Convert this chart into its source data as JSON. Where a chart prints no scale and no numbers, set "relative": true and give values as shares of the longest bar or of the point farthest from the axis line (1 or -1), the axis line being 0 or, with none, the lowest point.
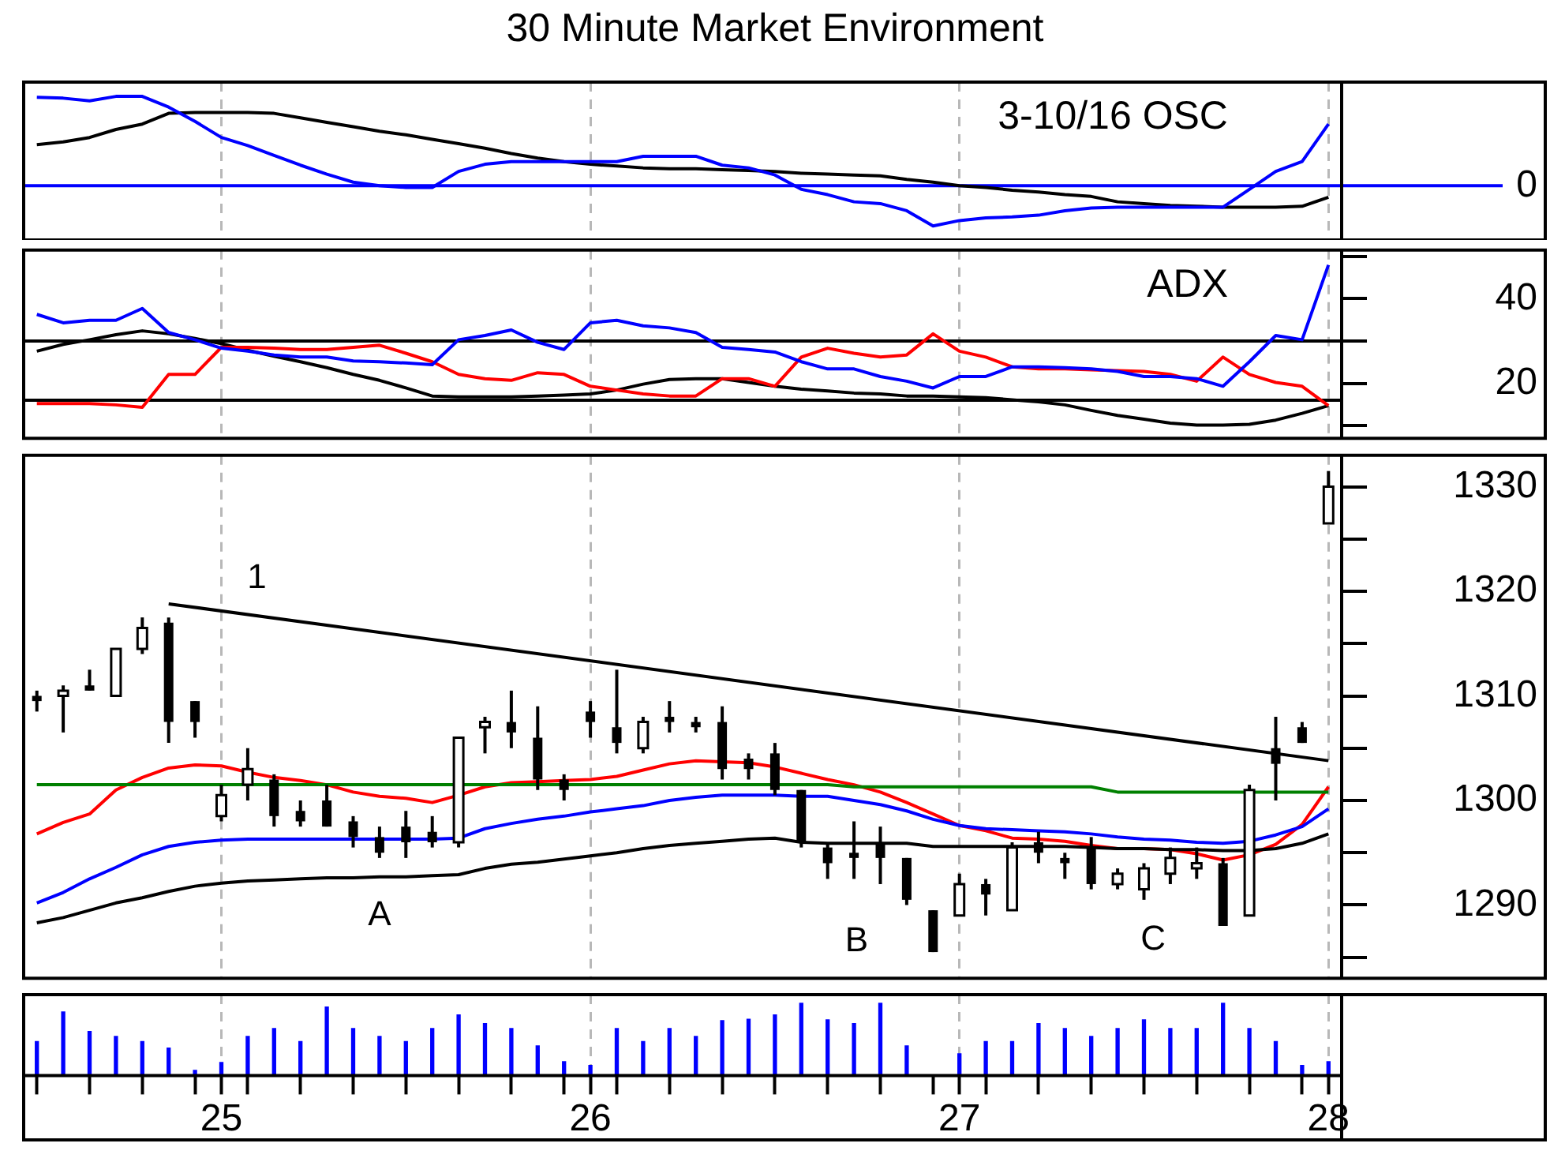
{
  "chart_data": [
    {
      "type": "line",
      "title": "30 Minute Market Environment",
      "relative": true,
      "annotations": [
        "3-10/16 OSC"
      ],
      "tick_labels": false,
      "grid": "x",
      "categories": [
        null,
        null,
        null,
        null,
        null,
        null,
        null,
        "25",
        null,
        null,
        null,
        null,
        null,
        null,
        null,
        null,
        null,
        null,
        null,
        null,
        null,
        "26",
        null,
        null,
        null,
        null,
        null,
        null,
        null,
        null,
        null,
        null,
        null,
        null,
        null,
        "27",
        null,
        null,
        null,
        null,
        null,
        null,
        null,
        null,
        null,
        null,
        null,
        null,
        null,
        "28"
      ],
      "ref_lines": [
        {
          "axis": "y",
          "value": 0,
          "label": "0",
          "color": "#0000ff"
        }
      ],
      "series": [
        {
          "color": "#0000ff",
          "values": [
            0.99,
            0.98,
            0.95,
            1,
            1,
            0.88,
            0.72,
            0.54,
            0.45,
            0.34,
            0.23,
            0.13,
            0.04,
            0,
            -0.02,
            -0.02,
            0.16,
            0.24,
            0.27,
            0.27,
            0.27,
            0.27,
            0.27,
            0.33,
            0.33,
            0.33,
            0.23,
            0.2,
            0.12,
            -0.04,
            -0.1,
            -0.18,
            -0.2,
            -0.28,
            -0.45,
            -0.39,
            -0.36,
            -0.35,
            -0.33,
            -0.28,
            -0.25,
            -0.24,
            -0.24,
            -0.24,
            -0.24,
            -0.24,
            -0.04,
            0.16,
            0.27,
            0.69
          ]
        },
        {
          "color": "#000000",
          "values": [
            0.46,
            0.49,
            0.54,
            0.63,
            0.69,
            0.81,
            0.82,
            0.82,
            0.82,
            0.81,
            0.76,
            0.71,
            0.66,
            0.61,
            0.57,
            0.52,
            0.47,
            0.42,
            0.36,
            0.31,
            0.27,
            0.24,
            0.22,
            0.2,
            0.19,
            0.19,
            0.18,
            0.17,
            0.16,
            0.14,
            0.13,
            0.12,
            0.11,
            0.07,
            0.04,
            0,
            -0.02,
            -0.05,
            -0.07,
            -0.1,
            -0.12,
            -0.18,
            -0.2,
            -0.22,
            -0.23,
            -0.24,
            -0.24,
            -0.24,
            -0.23,
            -0.13
          ]
        }
      ]
    },
    {
      "type": "line",
      "annotations": [
        "ADX"
      ],
      "tick_labels": "y",
      "grid": "x",
      "categories": [
        null,
        null,
        null,
        null,
        null,
        null,
        null,
        "25",
        null,
        null,
        null,
        null,
        null,
        null,
        null,
        null,
        null,
        null,
        null,
        null,
        null,
        "26",
        null,
        null,
        null,
        null,
        null,
        null,
        null,
        null,
        null,
        null,
        null,
        null,
        null,
        "27",
        null,
        null,
        null,
        null,
        null,
        null,
        null,
        null,
        null,
        null,
        null,
        null,
        null,
        "28"
      ],
      "ylim": [
        7,
        51.5
      ],
      "yticks": [
        {
          "value": 10,
          "label": null
        },
        20,
        {
          "value": 30,
          "label": null
        },
        40,
        {
          "value": 50,
          "label": null
        }
      ],
      "ref_lines": [
        {
          "axis": "y",
          "value": 30,
          "color": "#000000"
        },
        {
          "axis": "y",
          "value": 16,
          "color": "#000000"
        }
      ],
      "series": [
        {
          "color": "#0000ff",
          "values": [
            36.3,
            34.3,
            34.9,
            34.9,
            37.7,
            32,
            30.3,
            28.3,
            27.6,
            26.7,
            26.2,
            26.2,
            25.3,
            25.1,
            24.8,
            24.4,
            30.3,
            31.3,
            32.6,
            29.7,
            28,
            34.3,
            34.9,
            33.6,
            33.1,
            32,
            28.5,
            28,
            27.4,
            25.1,
            23.4,
            23.4,
            21.6,
            20.5,
            18.9,
            21.6,
            21.6,
            23.9,
            23.9,
            23.7,
            23.4,
            22.8,
            21.6,
            21.6,
            21.1,
            19.3,
            25.1,
            31.3,
            30.3,
            48
          ]
        },
        {
          "color": "#ff0000",
          "values": [
            15.2,
            15.2,
            15.2,
            14.9,
            14.3,
            22.1,
            22.1,
            28.5,
            28.5,
            28.3,
            28,
            28,
            28.5,
            29,
            27.1,
            25.1,
            22.1,
            21.1,
            20.7,
            22.5,
            22.1,
            19.3,
            18.4,
            17.5,
            17,
            17,
            21.1,
            21.1,
            19.3,
            26.2,
            28.3,
            27.1,
            26.2,
            26.7,
            31.7,
            27.6,
            26.2,
            23.9,
            23.4,
            23.4,
            23.2,
            23,
            22.8,
            22.1,
            20.5,
            26.2,
            22.1,
            20.2,
            19.3,
            14.7
          ]
        },
        {
          "color": "#000000",
          "values": [
            27.6,
            29.2,
            30.3,
            31.5,
            32.4,
            31.7,
            30.6,
            29.4,
            27.8,
            26.4,
            25.1,
            23.7,
            22.1,
            20.7,
            18.9,
            17,
            16.8,
            16.8,
            16.8,
            17,
            17.2,
            17.5,
            18.4,
            19.8,
            20.9,
            21.1,
            21.1,
            20.2,
            19.3,
            18.6,
            18.2,
            17.7,
            17.5,
            17,
            17,
            16.8,
            16.6,
            16.1,
            15.6,
            14.9,
            13.6,
            12.4,
            11.5,
            10.6,
            10.1,
            10.1,
            10.3,
            11.3,
            12.9,
            14.7
          ]
        }
      ]
    },
    {
      "type": "candlestick",
      "tick_labels": "y",
      "grid": "x",
      "categories": [
        null,
        null,
        null,
        null,
        null,
        null,
        null,
        "25",
        null,
        null,
        null,
        null,
        null,
        null,
        null,
        null,
        null,
        null,
        null,
        null,
        null,
        "26",
        null,
        null,
        null,
        null,
        null,
        null,
        null,
        null,
        null,
        null,
        null,
        null,
        null,
        "27",
        null,
        null,
        null,
        null,
        null,
        null,
        null,
        null,
        null,
        null,
        null,
        null,
        null,
        "28"
      ],
      "ylim": [
        1283,
        1333
      ],
      "yticks": [
        {
          "value": 1285,
          "label": null
        },
        1290,
        {
          "value": 1295,
          "label": null
        },
        1300,
        {
          "value": 1305,
          "label": null
        },
        1310,
        {
          "value": 1315,
          "label": null
        },
        1320,
        {
          "value": 1325,
          "label": null
        },
        1330
      ],
      "annotations": [
        "1",
        "A",
        "B",
        "C"
      ],
      "ohlc": [
        [
          1310,
          1310.5,
          1308.5,
          1309.5
        ],
        [
          1310,
          1311,
          1306.5,
          1310.5
        ],
        [
          1311,
          1312.5,
          1310.5,
          1310.5
        ],
        [
          1310,
          1314.5,
          1310,
          1314.5
        ],
        [
          1314.5,
          1317.5,
          1314,
          1316.5
        ],
        [
          1317,
          1317.5,
          1305.5,
          1307.5
        ],
        [
          1309.5,
          1309.5,
          1306,
          1307.5
        ],
        [
          1298.5,
          1301.5,
          1298,
          1300.5
        ],
        [
          1301.5,
          1305,
          1300,
          1303
        ],
        [
          1302,
          1302.5,
          1297.5,
          1298.5
        ],
        [
          1299,
          1300,
          1297.5,
          1298
        ],
        [
          1300,
          1301.5,
          1297.5,
          1297.5
        ],
        [
          1298,
          1298.5,
          1295.5,
          1296.5
        ],
        [
          1296.5,
          1297.5,
          1294.5,
          1295
        ],
        [
          1297.5,
          1299,
          1294.5,
          1296
        ],
        [
          1297,
          1298.5,
          1295.5,
          1296
        ],
        [
          1296,
          1306,
          1295.5,
          1306
        ],
        [
          1307,
          1308,
          1304.5,
          1307.5
        ],
        [
          1307.5,
          1310.5,
          1305,
          1306.5
        ],
        [
          1306,
          1309,
          1301,
          1302
        ],
        [
          1302,
          1302.5,
          1300,
          1301
        ],
        [
          1308.5,
          1309.5,
          1306,
          1307.5
        ],
        [
          1307,
          1312.5,
          1304.5,
          1305.5
        ],
        [
          1305,
          1308,
          1304.5,
          1307.5
        ],
        [
          1308,
          1309.5,
          1306.5,
          1307.5
        ],
        [
          1307.5,
          1308,
          1306.5,
          1307
        ],
        [
          1307.5,
          1309,
          1302,
          1303
        ],
        [
          1304,
          1304.5,
          1302,
          1303
        ],
        [
          1304.5,
          1305.5,
          1300.5,
          1301
        ],
        [
          1301,
          1301,
          1295.5,
          1296
        ],
        [
          1295.5,
          1296,
          1292.5,
          1294
        ],
        [
          1295,
          1298,
          1292.5,
          1294.5
        ],
        [
          1296,
          1297.5,
          1292,
          1294.5
        ],
        [
          1294.5,
          1294.5,
          1290,
          1290.5
        ],
        [
          1289.5,
          1289.5,
          1285.5,
          1285.5
        ],
        [
          1289,
          1293,
          1289,
          1292
        ],
        [
          1292,
          1292.5,
          1289,
          1291
        ],
        [
          1289.5,
          1296,
          1289.5,
          1295.5
        ],
        [
          1296,
          1297,
          1294,
          1295
        ],
        [
          1294.5,
          1295,
          1292.5,
          1294
        ],
        [
          1295.5,
          1296.5,
          1291.5,
          1292
        ],
        [
          1292,
          1293.5,
          1291.5,
          1293
        ],
        [
          1291.5,
          1294,
          1290.5,
          1293.5
        ],
        [
          1293,
          1295.5,
          1292,
          1294.5
        ],
        [
          1293.5,
          1295.5,
          1292.5,
          1294
        ],
        [
          1294,
          1294.5,
          1288,
          1288
        ],
        [
          1289,
          1301.5,
          1289,
          1301
        ],
        [
          1305,
          1308,
          1300,
          1303.5
        ],
        [
          1307,
          1307.5,
          1305.5,
          1305.5
        ],
        [
          1326.5,
          1331.5,
          1326.5,
          1330
        ]
      ],
      "series": [
        {
          "type": "line",
          "color": "#008000",
          "values": [
            1301.5,
            1301.5,
            1301.5,
            1301.5,
            1301.5,
            1301.5,
            1301.5,
            1301.5,
            1301.5,
            1301.5,
            1301.5,
            1301.5,
            1301.5,
            1301.5,
            1301.5,
            1301.5,
            1301.5,
            1301.5,
            1301.5,
            1301.5,
            1301.5,
            1301.5,
            1301.5,
            1301.5,
            1301.5,
            1301.5,
            1301.5,
            1301.5,
            1301.5,
            1301.5,
            1301.5,
            1301.3,
            1301.3,
            1301.3,
            1301.3,
            1301.3,
            1301.3,
            1301.3,
            1301.3,
            1301.3,
            1301.3,
            1300.8,
            1300.8,
            1300.8,
            1300.8,
            1300.8,
            1300.8,
            1300.8,
            1300.8,
            1300.8
          ]
        },
        {
          "type": "line",
          "color": "#000000",
          "values": [
            1288.3,
            1288.8,
            1289.5,
            1290.2,
            1290.7,
            1291.3,
            1291.8,
            1292.1,
            1292.3,
            1292.4,
            1292.5,
            1292.6,
            1292.6,
            1292.7,
            1292.7,
            1292.8,
            1292.9,
            1293.5,
            1293.9,
            1294.1,
            1294.4,
            1294.7,
            1295,
            1295.4,
            1295.7,
            1295.9,
            1296.1,
            1296.3,
            1296.4,
            1296,
            1295.9,
            1295.9,
            1295.9,
            1295.9,
            1295.6,
            1295.6,
            1295.6,
            1295.6,
            1295.6,
            1295.6,
            1295.5,
            1295.4,
            1295.4,
            1295.3,
            1295.3,
            1295.2,
            1295.2,
            1295.4,
            1295.9,
            1296.8
          ]
        },
        {
          "type": "line",
          "color": "#0000ff",
          "values": [
            1290.2,
            1291.2,
            1292.5,
            1293.6,
            1294.8,
            1295.6,
            1296,
            1296.2,
            1296.3,
            1296.3,
            1296.3,
            1296.3,
            1296.3,
            1296.3,
            1296.3,
            1296.3,
            1296.4,
            1297.3,
            1297.8,
            1298.2,
            1298.5,
            1298.9,
            1299.2,
            1299.5,
            1300,
            1300.3,
            1300.5,
            1300.5,
            1300.5,
            1300.4,
            1300.4,
            1300,
            1299.6,
            1299,
            1298.2,
            1297.6,
            1297.3,
            1297.2,
            1297.1,
            1297,
            1296.8,
            1296.5,
            1296.3,
            1296.2,
            1296,
            1295.9,
            1296.1,
            1296.7,
            1297.5,
            1299.2
          ]
        },
        {
          "type": "line",
          "color": "#ff0000",
          "values": [
            1296.8,
            1297.9,
            1298.7,
            1301,
            1302.2,
            1303.1,
            1303.4,
            1303.3,
            1302.7,
            1302.2,
            1301.9,
            1301.5,
            1300.8,
            1300.4,
            1300.2,
            1299.8,
            1300.5,
            1301.3,
            1301.7,
            1301.8,
            1301.9,
            1302,
            1302.3,
            1302.9,
            1303.5,
            1303.8,
            1303.7,
            1303.6,
            1303.2,
            1302.6,
            1302,
            1301.5,
            1300.8,
            1299.8,
            1298.7,
            1297.6,
            1297.1,
            1296.4,
            1296.3,
            1296.1,
            1295.7,
            1295.4,
            1295.4,
            1295.3,
            1294.9,
            1294.3,
            1294.8,
            1295.8,
            1297.7,
            1301.3
          ]
        },
        {
          "type": "line",
          "color": "#000000",
          "values": [
            null,
            null,
            null,
            null,
            null,
            1318.8,
            null,
            null,
            null,
            null,
            null,
            null,
            null,
            null,
            null,
            null,
            null,
            null,
            null,
            null,
            null,
            null,
            null,
            null,
            null,
            null,
            null,
            null,
            null,
            null,
            null,
            null,
            null,
            null,
            null,
            null,
            null,
            null,
            null,
            null,
            null,
            null,
            null,
            null,
            null,
            null,
            null,
            null,
            null,
            1303.8
          ]
        }
      ]
    },
    {
      "type": "bar",
      "relative": true,
      "tick_labels": "x",
      "grid": "x",
      "color": "#0000ff",
      "categories": [
        null,
        null,
        null,
        null,
        null,
        null,
        null,
        "25",
        null,
        null,
        null,
        null,
        null,
        null,
        null,
        null,
        null,
        null,
        null,
        null,
        null,
        "26",
        null,
        null,
        null,
        null,
        null,
        null,
        null,
        null,
        null,
        null,
        null,
        null,
        null,
        "27",
        null,
        null,
        null,
        null,
        null,
        null,
        null,
        null,
        null,
        null,
        null,
        null,
        null,
        "28"
      ],
      "values": [
        0.47,
        0.88,
        0.61,
        0.54,
        0.47,
        0.38,
        0.07,
        0.18,
        0.54,
        0.65,
        0.47,
        0.95,
        0.65,
        0.54,
        0.47,
        0.65,
        0.84,
        0.72,
        0.65,
        0.41,
        0.19,
        0.14,
        0.65,
        0.47,
        0.65,
        0.54,
        0.76,
        0.78,
        0.84,
        1,
        0.77,
        0.72,
        1,
        0.41,
        null,
        0.3,
        0.47,
        0.47,
        0.72,
        0.65,
        0.54,
        0.65,
        0.77,
        0.65,
        0.65,
        1,
        0.65,
        0.47,
        0.14,
        0.19
      ]
    }
  ]
}
